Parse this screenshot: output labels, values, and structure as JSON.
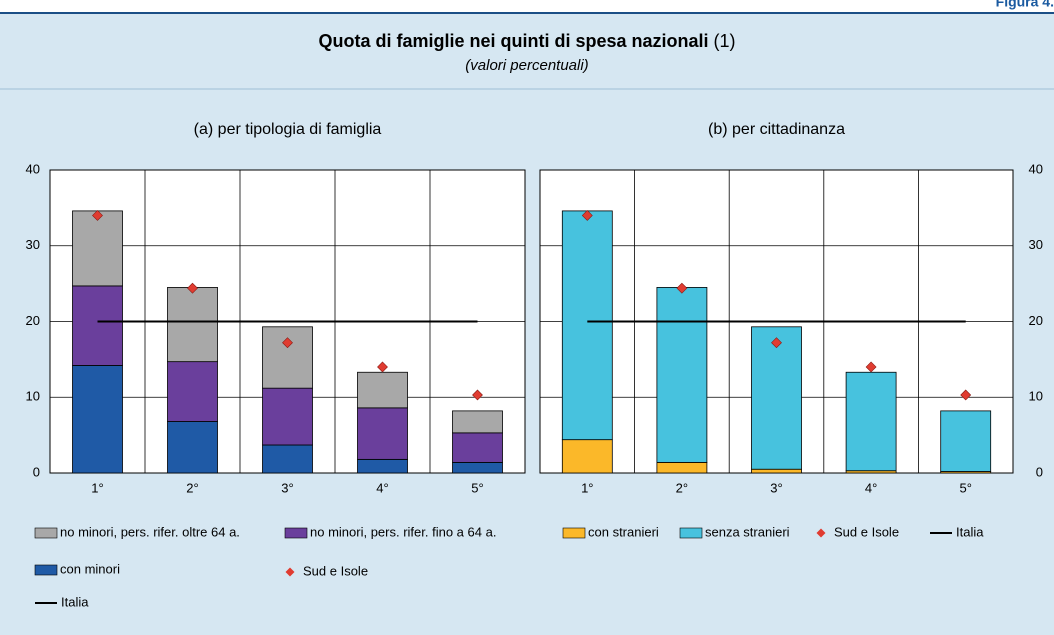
{
  "header": {
    "figure_label": "Figura 4.",
    "title": "Quota di famiglie nei quinti di spesa nazionali",
    "title_note": "(1)",
    "subtitle": "(valori percentuali)"
  },
  "chart_data": [
    {
      "type": "bar",
      "stacked": true,
      "title": "(a) per tipologia di famiglia",
      "categories": [
        "1°",
        "2°",
        "3°",
        "4°",
        "5°"
      ],
      "series": [
        {
          "name": "con minori",
          "color": "#1f5aa6",
          "values": [
            14.2,
            6.8,
            3.7,
            1.8,
            1.4
          ]
        },
        {
          "name": "no minori, pers. rifer. fino a 64 a.",
          "color": "#6a3f9c",
          "values": [
            10.5,
            7.9,
            7.5,
            6.8,
            3.9
          ]
        },
        {
          "name": "no minori, pers. rifer. oltre 64 a.",
          "color": "#a8a8a8",
          "values": [
            9.9,
            9.8,
            8.1,
            4.7,
            2.9
          ]
        }
      ],
      "markers": {
        "name": "Sud e Isole",
        "color": "#e03c31",
        "values": [
          34.0,
          24.4,
          17.2,
          14.0,
          10.3
        ]
      },
      "reference": {
        "name": "Italia",
        "color": "#000000",
        "value": 20
      },
      "ylim": [
        0,
        40
      ],
      "yticks": [
        0,
        10,
        20,
        30,
        40
      ],
      "grid": true,
      "y_axis_side": "left"
    },
    {
      "type": "bar",
      "stacked": true,
      "title": "(b) per cittadinanza",
      "categories": [
        "1°",
        "2°",
        "3°",
        "4°",
        "5°"
      ],
      "series": [
        {
          "name": "con stranieri",
          "color": "#fbb829",
          "values": [
            4.4,
            1.4,
            0.5,
            0.3,
            0.2
          ]
        },
        {
          "name": "senza stranieri",
          "color": "#47c2de",
          "values": [
            30.2,
            23.1,
            18.8,
            13.0,
            8.0
          ]
        }
      ],
      "markers": {
        "name": "Sud e Isole",
        "color": "#e03c31",
        "values": [
          34.0,
          24.4,
          17.2,
          14.0,
          10.3
        ]
      },
      "reference": {
        "name": "Italia",
        "color": "#000000",
        "value": 20
      },
      "ylim": [
        0,
        40
      ],
      "yticks": [
        0,
        10,
        20,
        30,
        40
      ],
      "grid": true,
      "y_axis_side": "right"
    }
  ]
}
